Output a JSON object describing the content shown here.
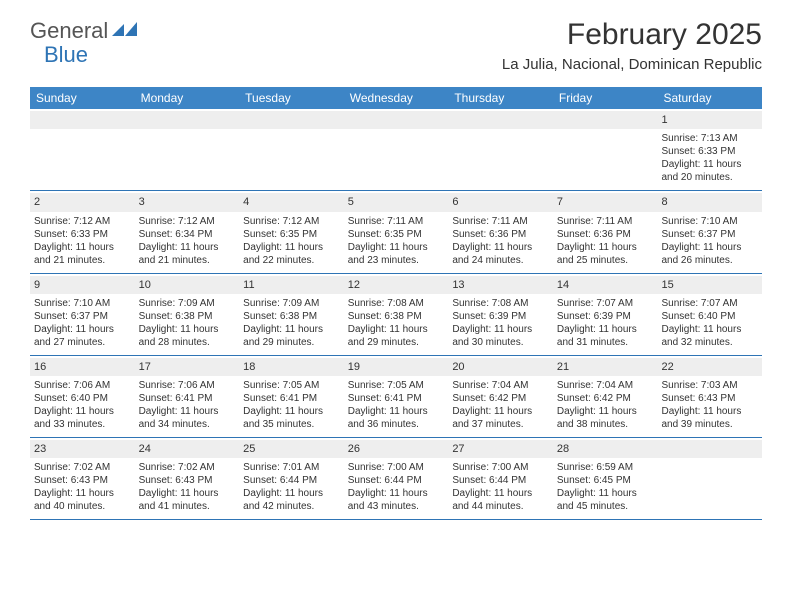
{
  "brand": {
    "part1": "General",
    "part2": "Blue",
    "color_general": "#555555",
    "color_blue": "#2e74b5"
  },
  "title": "February 2025",
  "location": "La Julia, Nacional, Dominican Republic",
  "colors": {
    "header_bg": "#3d85c6",
    "header_text": "#ffffff",
    "row_border": "#2e74b5",
    "daynum_bg": "#eeeeee",
    "body_text": "#333333"
  },
  "day_names": [
    "Sunday",
    "Monday",
    "Tuesday",
    "Wednesday",
    "Thursday",
    "Friday",
    "Saturday"
  ],
  "weeks": [
    [
      {
        "n": "",
        "sr": "",
        "ss": "",
        "dl": ""
      },
      {
        "n": "",
        "sr": "",
        "ss": "",
        "dl": ""
      },
      {
        "n": "",
        "sr": "",
        "ss": "",
        "dl": ""
      },
      {
        "n": "",
        "sr": "",
        "ss": "",
        "dl": ""
      },
      {
        "n": "",
        "sr": "",
        "ss": "",
        "dl": ""
      },
      {
        "n": "",
        "sr": "",
        "ss": "",
        "dl": ""
      },
      {
        "n": "1",
        "sr": "Sunrise: 7:13 AM",
        "ss": "Sunset: 6:33 PM",
        "dl": "Daylight: 11 hours and 20 minutes."
      }
    ],
    [
      {
        "n": "2",
        "sr": "Sunrise: 7:12 AM",
        "ss": "Sunset: 6:33 PM",
        "dl": "Daylight: 11 hours and 21 minutes."
      },
      {
        "n": "3",
        "sr": "Sunrise: 7:12 AM",
        "ss": "Sunset: 6:34 PM",
        "dl": "Daylight: 11 hours and 21 minutes."
      },
      {
        "n": "4",
        "sr": "Sunrise: 7:12 AM",
        "ss": "Sunset: 6:35 PM",
        "dl": "Daylight: 11 hours and 22 minutes."
      },
      {
        "n": "5",
        "sr": "Sunrise: 7:11 AM",
        "ss": "Sunset: 6:35 PM",
        "dl": "Daylight: 11 hours and 23 minutes."
      },
      {
        "n": "6",
        "sr": "Sunrise: 7:11 AM",
        "ss": "Sunset: 6:36 PM",
        "dl": "Daylight: 11 hours and 24 minutes."
      },
      {
        "n": "7",
        "sr": "Sunrise: 7:11 AM",
        "ss": "Sunset: 6:36 PM",
        "dl": "Daylight: 11 hours and 25 minutes."
      },
      {
        "n": "8",
        "sr": "Sunrise: 7:10 AM",
        "ss": "Sunset: 6:37 PM",
        "dl": "Daylight: 11 hours and 26 minutes."
      }
    ],
    [
      {
        "n": "9",
        "sr": "Sunrise: 7:10 AM",
        "ss": "Sunset: 6:37 PM",
        "dl": "Daylight: 11 hours and 27 minutes."
      },
      {
        "n": "10",
        "sr": "Sunrise: 7:09 AM",
        "ss": "Sunset: 6:38 PM",
        "dl": "Daylight: 11 hours and 28 minutes."
      },
      {
        "n": "11",
        "sr": "Sunrise: 7:09 AM",
        "ss": "Sunset: 6:38 PM",
        "dl": "Daylight: 11 hours and 29 minutes."
      },
      {
        "n": "12",
        "sr": "Sunrise: 7:08 AM",
        "ss": "Sunset: 6:38 PM",
        "dl": "Daylight: 11 hours and 29 minutes."
      },
      {
        "n": "13",
        "sr": "Sunrise: 7:08 AM",
        "ss": "Sunset: 6:39 PM",
        "dl": "Daylight: 11 hours and 30 minutes."
      },
      {
        "n": "14",
        "sr": "Sunrise: 7:07 AM",
        "ss": "Sunset: 6:39 PM",
        "dl": "Daylight: 11 hours and 31 minutes."
      },
      {
        "n": "15",
        "sr": "Sunrise: 7:07 AM",
        "ss": "Sunset: 6:40 PM",
        "dl": "Daylight: 11 hours and 32 minutes."
      }
    ],
    [
      {
        "n": "16",
        "sr": "Sunrise: 7:06 AM",
        "ss": "Sunset: 6:40 PM",
        "dl": "Daylight: 11 hours and 33 minutes."
      },
      {
        "n": "17",
        "sr": "Sunrise: 7:06 AM",
        "ss": "Sunset: 6:41 PM",
        "dl": "Daylight: 11 hours and 34 minutes."
      },
      {
        "n": "18",
        "sr": "Sunrise: 7:05 AM",
        "ss": "Sunset: 6:41 PM",
        "dl": "Daylight: 11 hours and 35 minutes."
      },
      {
        "n": "19",
        "sr": "Sunrise: 7:05 AM",
        "ss": "Sunset: 6:41 PM",
        "dl": "Daylight: 11 hours and 36 minutes."
      },
      {
        "n": "20",
        "sr": "Sunrise: 7:04 AM",
        "ss": "Sunset: 6:42 PM",
        "dl": "Daylight: 11 hours and 37 minutes."
      },
      {
        "n": "21",
        "sr": "Sunrise: 7:04 AM",
        "ss": "Sunset: 6:42 PM",
        "dl": "Daylight: 11 hours and 38 minutes."
      },
      {
        "n": "22",
        "sr": "Sunrise: 7:03 AM",
        "ss": "Sunset: 6:43 PM",
        "dl": "Daylight: 11 hours and 39 minutes."
      }
    ],
    [
      {
        "n": "23",
        "sr": "Sunrise: 7:02 AM",
        "ss": "Sunset: 6:43 PM",
        "dl": "Daylight: 11 hours and 40 minutes."
      },
      {
        "n": "24",
        "sr": "Sunrise: 7:02 AM",
        "ss": "Sunset: 6:43 PM",
        "dl": "Daylight: 11 hours and 41 minutes."
      },
      {
        "n": "25",
        "sr": "Sunrise: 7:01 AM",
        "ss": "Sunset: 6:44 PM",
        "dl": "Daylight: 11 hours and 42 minutes."
      },
      {
        "n": "26",
        "sr": "Sunrise: 7:00 AM",
        "ss": "Sunset: 6:44 PM",
        "dl": "Daylight: 11 hours and 43 minutes."
      },
      {
        "n": "27",
        "sr": "Sunrise: 7:00 AM",
        "ss": "Sunset: 6:44 PM",
        "dl": "Daylight: 11 hours and 44 minutes."
      },
      {
        "n": "28",
        "sr": "Sunrise: 6:59 AM",
        "ss": "Sunset: 6:45 PM",
        "dl": "Daylight: 11 hours and 45 minutes."
      },
      {
        "n": "",
        "sr": "",
        "ss": "",
        "dl": ""
      }
    ]
  ]
}
